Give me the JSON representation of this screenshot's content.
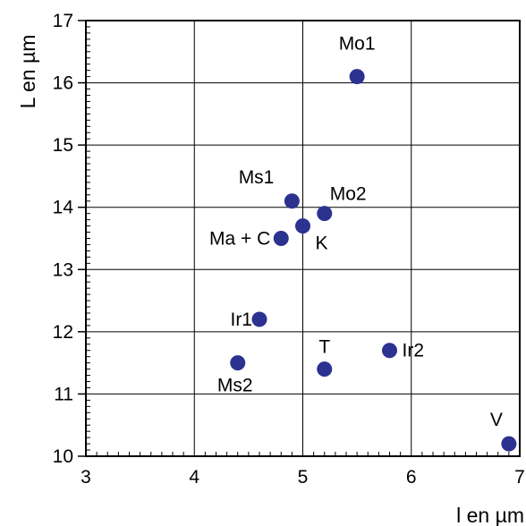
{
  "chart_data": {
    "type": "scatter",
    "xlabel": "l en µm",
    "ylabel": "L en µm",
    "xlim": [
      3,
      7
    ],
    "ylim": [
      10,
      17
    ],
    "xticks": [
      3,
      4,
      5,
      6,
      7
    ],
    "yticks": [
      10,
      11,
      12,
      13,
      14,
      15,
      16,
      17
    ],
    "grid": true,
    "marker_color": "#2b3290",
    "points": [
      {
        "label": "Mo1",
        "x": 5.5,
        "y": 16.1
      },
      {
        "label": "Ms1",
        "x": 4.9,
        "y": 14.1
      },
      {
        "label": "Mo2",
        "x": 5.2,
        "y": 13.9
      },
      {
        "label": "K",
        "x": 5.0,
        "y": 13.7
      },
      {
        "label": "Ma + C",
        "x": 4.8,
        "y": 13.5
      },
      {
        "label": "Ir1",
        "x": 4.6,
        "y": 12.2
      },
      {
        "label": "Ir2",
        "x": 5.8,
        "y": 11.7
      },
      {
        "label": "Ms2",
        "x": 4.4,
        "y": 11.5
      },
      {
        "label": "T",
        "x": 5.2,
        "y": 11.4
      },
      {
        "label": "V",
        "x": 6.9,
        "y": 10.2
      }
    ]
  }
}
